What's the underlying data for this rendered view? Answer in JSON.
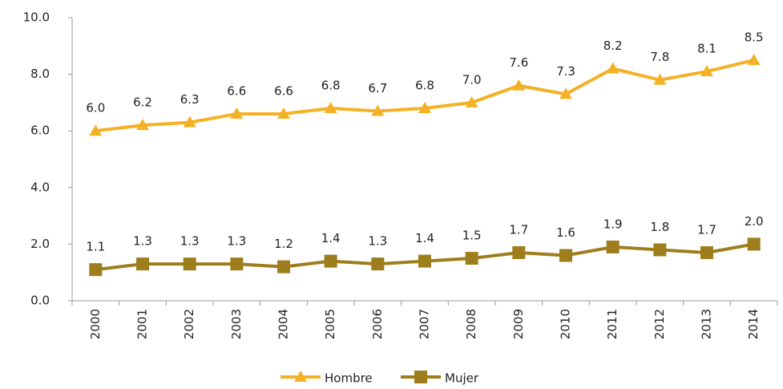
{
  "chart_data": {
    "type": "line",
    "categories": [
      "2000",
      "2001",
      "2002",
      "2003",
      "2004",
      "2005",
      "2006",
      "2007",
      "2008",
      "2009",
      "2010",
      "2011",
      "2012",
      "2013",
      "2014"
    ],
    "series": [
      {
        "name": "Hombre",
        "color": "#f5b125",
        "marker": "triangle",
        "values": [
          6.0,
          6.2,
          6.3,
          6.6,
          6.6,
          6.8,
          6.7,
          6.8,
          7.0,
          7.6,
          7.3,
          8.2,
          7.8,
          8.1,
          8.5
        ],
        "value_labels": [
          "6.0",
          "6.2",
          "6.3",
          "6.6",
          "6.6",
          "6.8",
          "6.7",
          "6.8",
          "7.0",
          "7.6",
          "7.3",
          "8.2",
          "7.8",
          "8.1",
          "8.5"
        ]
      },
      {
        "name": "Mujer",
        "color": "#9e7d1c",
        "marker": "square",
        "values": [
          1.1,
          1.3,
          1.3,
          1.3,
          1.2,
          1.4,
          1.3,
          1.4,
          1.5,
          1.7,
          1.6,
          1.9,
          1.8,
          1.7,
          2.0
        ],
        "value_labels": [
          "1.1",
          "1.3",
          "1.3",
          "1.3",
          "1.2",
          "1.4",
          "1.3",
          "1.4",
          "1.5",
          "1.7",
          "1.6",
          "1.9",
          "1.8",
          "1.7",
          "2.0"
        ]
      }
    ],
    "ylim": [
      0,
      10
    ],
    "yticks": [
      {
        "value": 0,
        "label": "0.0"
      },
      {
        "value": 2,
        "label": "2.0"
      },
      {
        "value": 4,
        "label": "4.0"
      },
      {
        "value": 6,
        "label": "6.0"
      },
      {
        "value": 8,
        "label": "8.0"
      },
      {
        "value": 10,
        "label": "10.0"
      }
    ],
    "grid": false,
    "legend": "bottom"
  }
}
